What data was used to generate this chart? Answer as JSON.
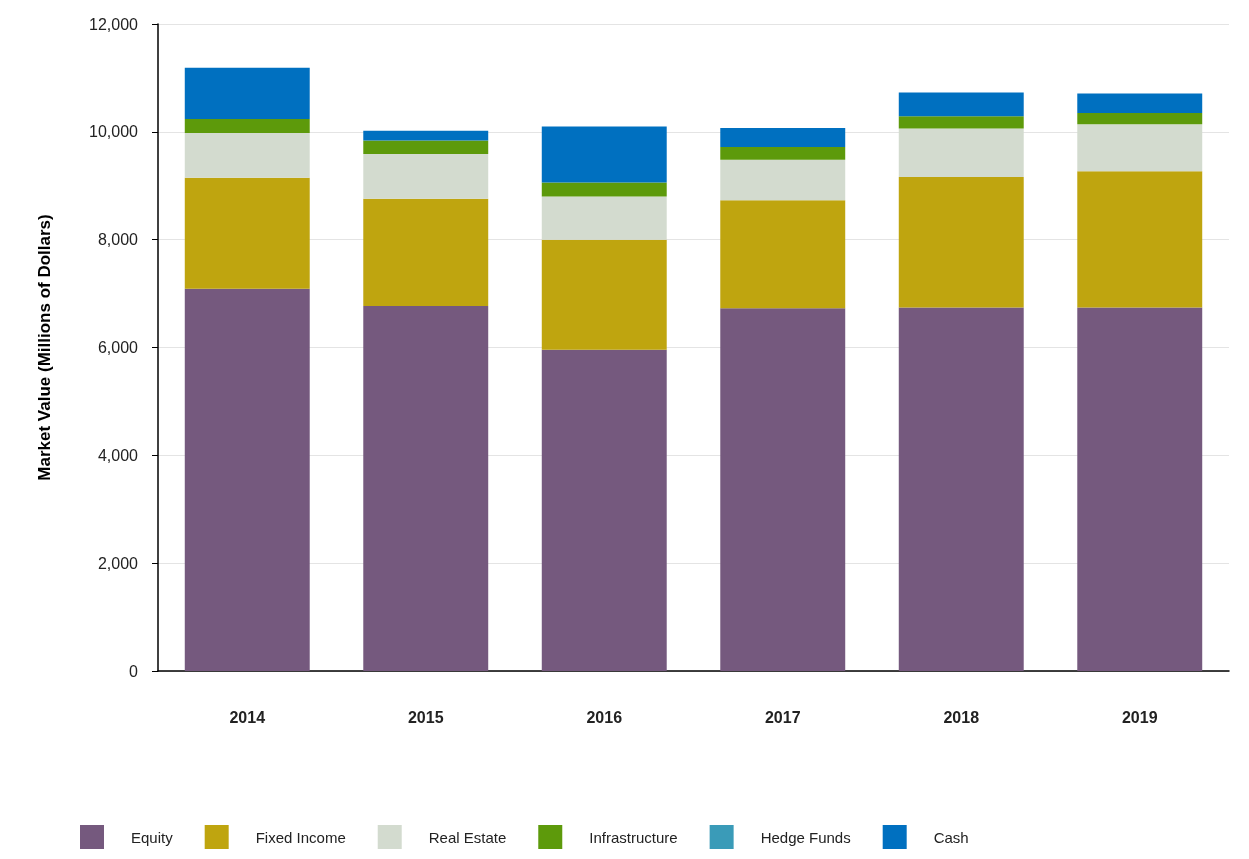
{
  "chart_data": {
    "type": "bar",
    "stacked": true,
    "ylabel": "Market Value (Millions of Dollars)",
    "categories": [
      "2014",
      "2015",
      "2016",
      "2017",
      "2018",
      "2019"
    ],
    "series": [
      {
        "name": "Equity",
        "color": "#75597e",
        "values": [
          7090,
          6770,
          5960,
          6730,
          6740,
          6740
        ]
      },
      {
        "name": "Fixed Income",
        "color": "#bfa50f",
        "values": [
          2060,
          1990,
          2040,
          2000,
          2420,
          2530
        ]
      },
      {
        "name": "Real Estate",
        "color": "#d3dbcf",
        "values": [
          830,
          830,
          800,
          750,
          900,
          870
        ]
      },
      {
        "name": "Infrastructure",
        "color": "#5d9a0b",
        "values": [
          260,
          250,
          260,
          240,
          230,
          210
        ]
      },
      {
        "name": "Hedge Funds",
        "color": "#3a9bb8",
        "values": [
          0,
          0,
          0,
          0,
          0,
          0
        ]
      },
      {
        "name": "Cash",
        "color": "#0070c0",
        "values": [
          950,
          180,
          1040,
          350,
          440,
          360
        ]
      }
    ],
    "ylim": [
      0,
      12000
    ],
    "yticks": [
      0,
      {
        "value": 2000,
        "label": "2,000"
      },
      {
        "value": 4000,
        "label": "4,000"
      },
      {
        "value": 6000,
        "label": "6,000"
      },
      {
        "value": 8000,
        "label": "8,000"
      },
      {
        "value": 10000,
        "label": "10,000"
      },
      {
        "value": 12000,
        "label": "12,000"
      }
    ],
    "grid": "y",
    "legend": "bottom"
  }
}
